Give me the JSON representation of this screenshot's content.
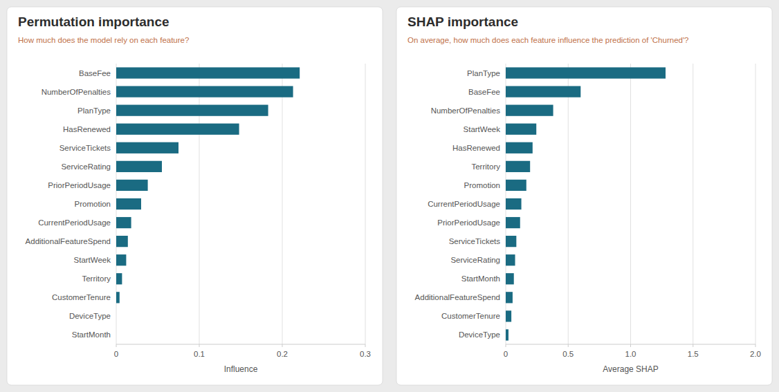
{
  "chart_data": [
    {
      "type": "bar",
      "orientation": "horizontal",
      "title": "Permutation importance",
      "subtitle": "How much does the model rely on each feature?",
      "x_label": "Influence",
      "categories": [
        "StartMonth",
        "DeviceType",
        "CustomerTenure",
        "Territory",
        "StartWeek",
        "AdditionalFeatureSpend",
        "CurrentPeriodUsage",
        "Promotion",
        "PriorPeriodUsage",
        "ServiceRating",
        "ServiceTickets",
        "HasRenewed",
        "PlanType",
        "NumberOfPenalties",
        "BaseFee"
      ],
      "values": [
        0.0,
        0.0,
        0.004,
        0.007,
        0.012,
        0.014,
        0.018,
        0.03,
        0.038,
        0.055,
        0.075,
        0.148,
        0.183,
        0.213,
        0.221
      ],
      "color": "#1a6b82",
      "xlim": [
        0,
        0.3
      ],
      "xticks": [
        0,
        0.1,
        0.2,
        0.3
      ],
      "grid": true
    },
    {
      "type": "bar",
      "orientation": "horizontal",
      "title": "SHAP importance",
      "subtitle": "On average, how much does each feature influence the prediction of 'Churned'?",
      "x_label": "Average SHAP",
      "categories": [
        "DeviceType",
        "CustomerTenure",
        "AdditionalFeatureSpend",
        "StartMonth",
        "ServiceRating",
        "ServiceTickets",
        "PriorPeriodUsage",
        "CurrentPeriodUsage",
        "Promotion",
        "Territory",
        "HasRenewed",
        "StartWeek",
        "NumberOfPenalties",
        "BaseFee",
        "PlanType"
      ],
      "values": [
        0.022,
        0.045,
        0.055,
        0.065,
        0.075,
        0.085,
        0.115,
        0.125,
        0.165,
        0.195,
        0.215,
        0.245,
        0.38,
        0.6,
        1.28
      ],
      "color": "#1a6b82",
      "xlim": [
        0,
        2.0
      ],
      "xticks": [
        0,
        0.5,
        {
          "value": 1,
          "label": "1.0"
        },
        1.5,
        {
          "value": 2,
          "label": "2.0"
        }
      ],
      "grid": true
    }
  ]
}
